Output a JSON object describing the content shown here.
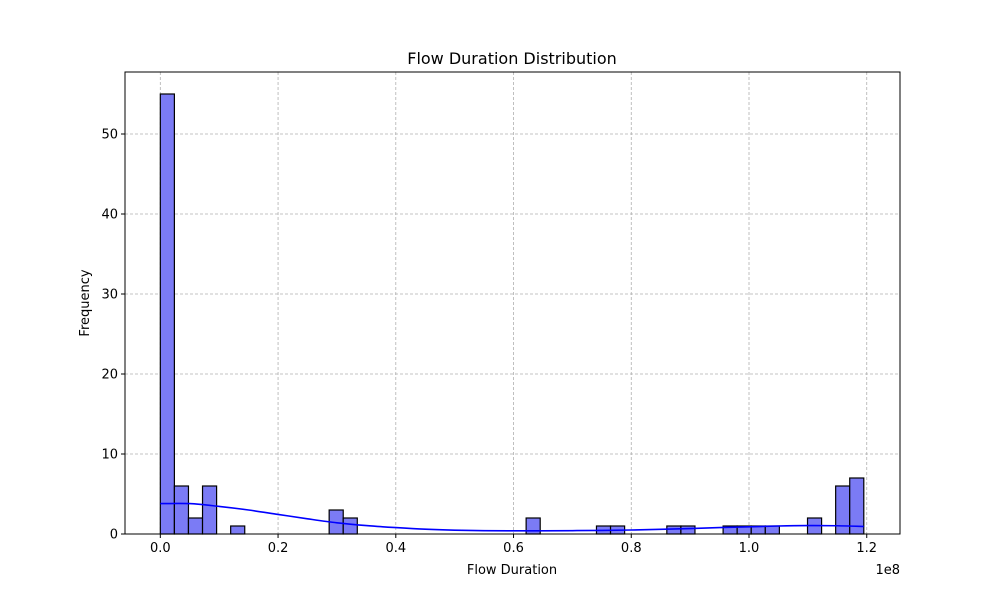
{
  "chart_data": {
    "type": "histogram",
    "title": "Flow Duration Distribution",
    "xlabel": "Flow Duration",
    "ylabel": "Frequency",
    "x_offset_label": "1e8",
    "x_unit_scale": 100000000,
    "xlim": [
      -0.06,
      1.2565
    ],
    "ylim": [
      0,
      57.75
    ],
    "x_ticks": [
      0.0,
      0.2,
      0.4,
      0.6,
      0.8,
      1.0,
      1.2
    ],
    "x_tick_labels": [
      "0.0",
      "0.2",
      "0.4",
      "0.6",
      "0.8",
      "1.0",
      "1.2"
    ],
    "y_ticks": [
      0,
      10,
      20,
      30,
      40,
      50
    ],
    "y_tick_labels": [
      "0",
      "10",
      "20",
      "30",
      "40",
      "50"
    ],
    "grid": true,
    "bar_color": "#7b7bf5",
    "bar_edge_color": "#000000",
    "kde_color": "#0000ff",
    "bin_width": 0.0239,
    "bins": [
      {
        "x": 0.0,
        "count": 55
      },
      {
        "x": 0.0239,
        "count": 6
      },
      {
        "x": 0.0478,
        "count": 2
      },
      {
        "x": 0.0717,
        "count": 6
      },
      {
        "x": 0.1195,
        "count": 1
      },
      {
        "x": 0.2868,
        "count": 3
      },
      {
        "x": 0.3107,
        "count": 2
      },
      {
        "x": 0.6214,
        "count": 2
      },
      {
        "x": 0.7409,
        "count": 1
      },
      {
        "x": 0.7648,
        "count": 1
      },
      {
        "x": 0.8604,
        "count": 1
      },
      {
        "x": 0.8843,
        "count": 1
      },
      {
        "x": 0.956,
        "count": 1
      },
      {
        "x": 0.9799,
        "count": 1
      },
      {
        "x": 1.0038,
        "count": 1
      },
      {
        "x": 1.0277,
        "count": 1
      },
      {
        "x": 1.0994,
        "count": 2
      },
      {
        "x": 1.1472,
        "count": 6
      },
      {
        "x": 1.1711,
        "count": 7
      }
    ],
    "kde": {
      "x": [
        0.0,
        0.05,
        0.1,
        0.15,
        0.2,
        0.25,
        0.3,
        0.35,
        0.4,
        0.45,
        0.5,
        0.55,
        0.6,
        0.65,
        0.7,
        0.75,
        0.8,
        0.85,
        0.9,
        0.95,
        1.0,
        1.05,
        1.1,
        1.15,
        1.195
      ],
      "y": [
        3.8,
        3.8,
        3.45,
        3.0,
        2.45,
        1.9,
        1.4,
        1.05,
        0.8,
        0.6,
        0.48,
        0.42,
        0.4,
        0.4,
        0.42,
        0.45,
        0.5,
        0.58,
        0.68,
        0.8,
        0.9,
        1.0,
        1.05,
        1.03,
        0.95
      ]
    }
  }
}
